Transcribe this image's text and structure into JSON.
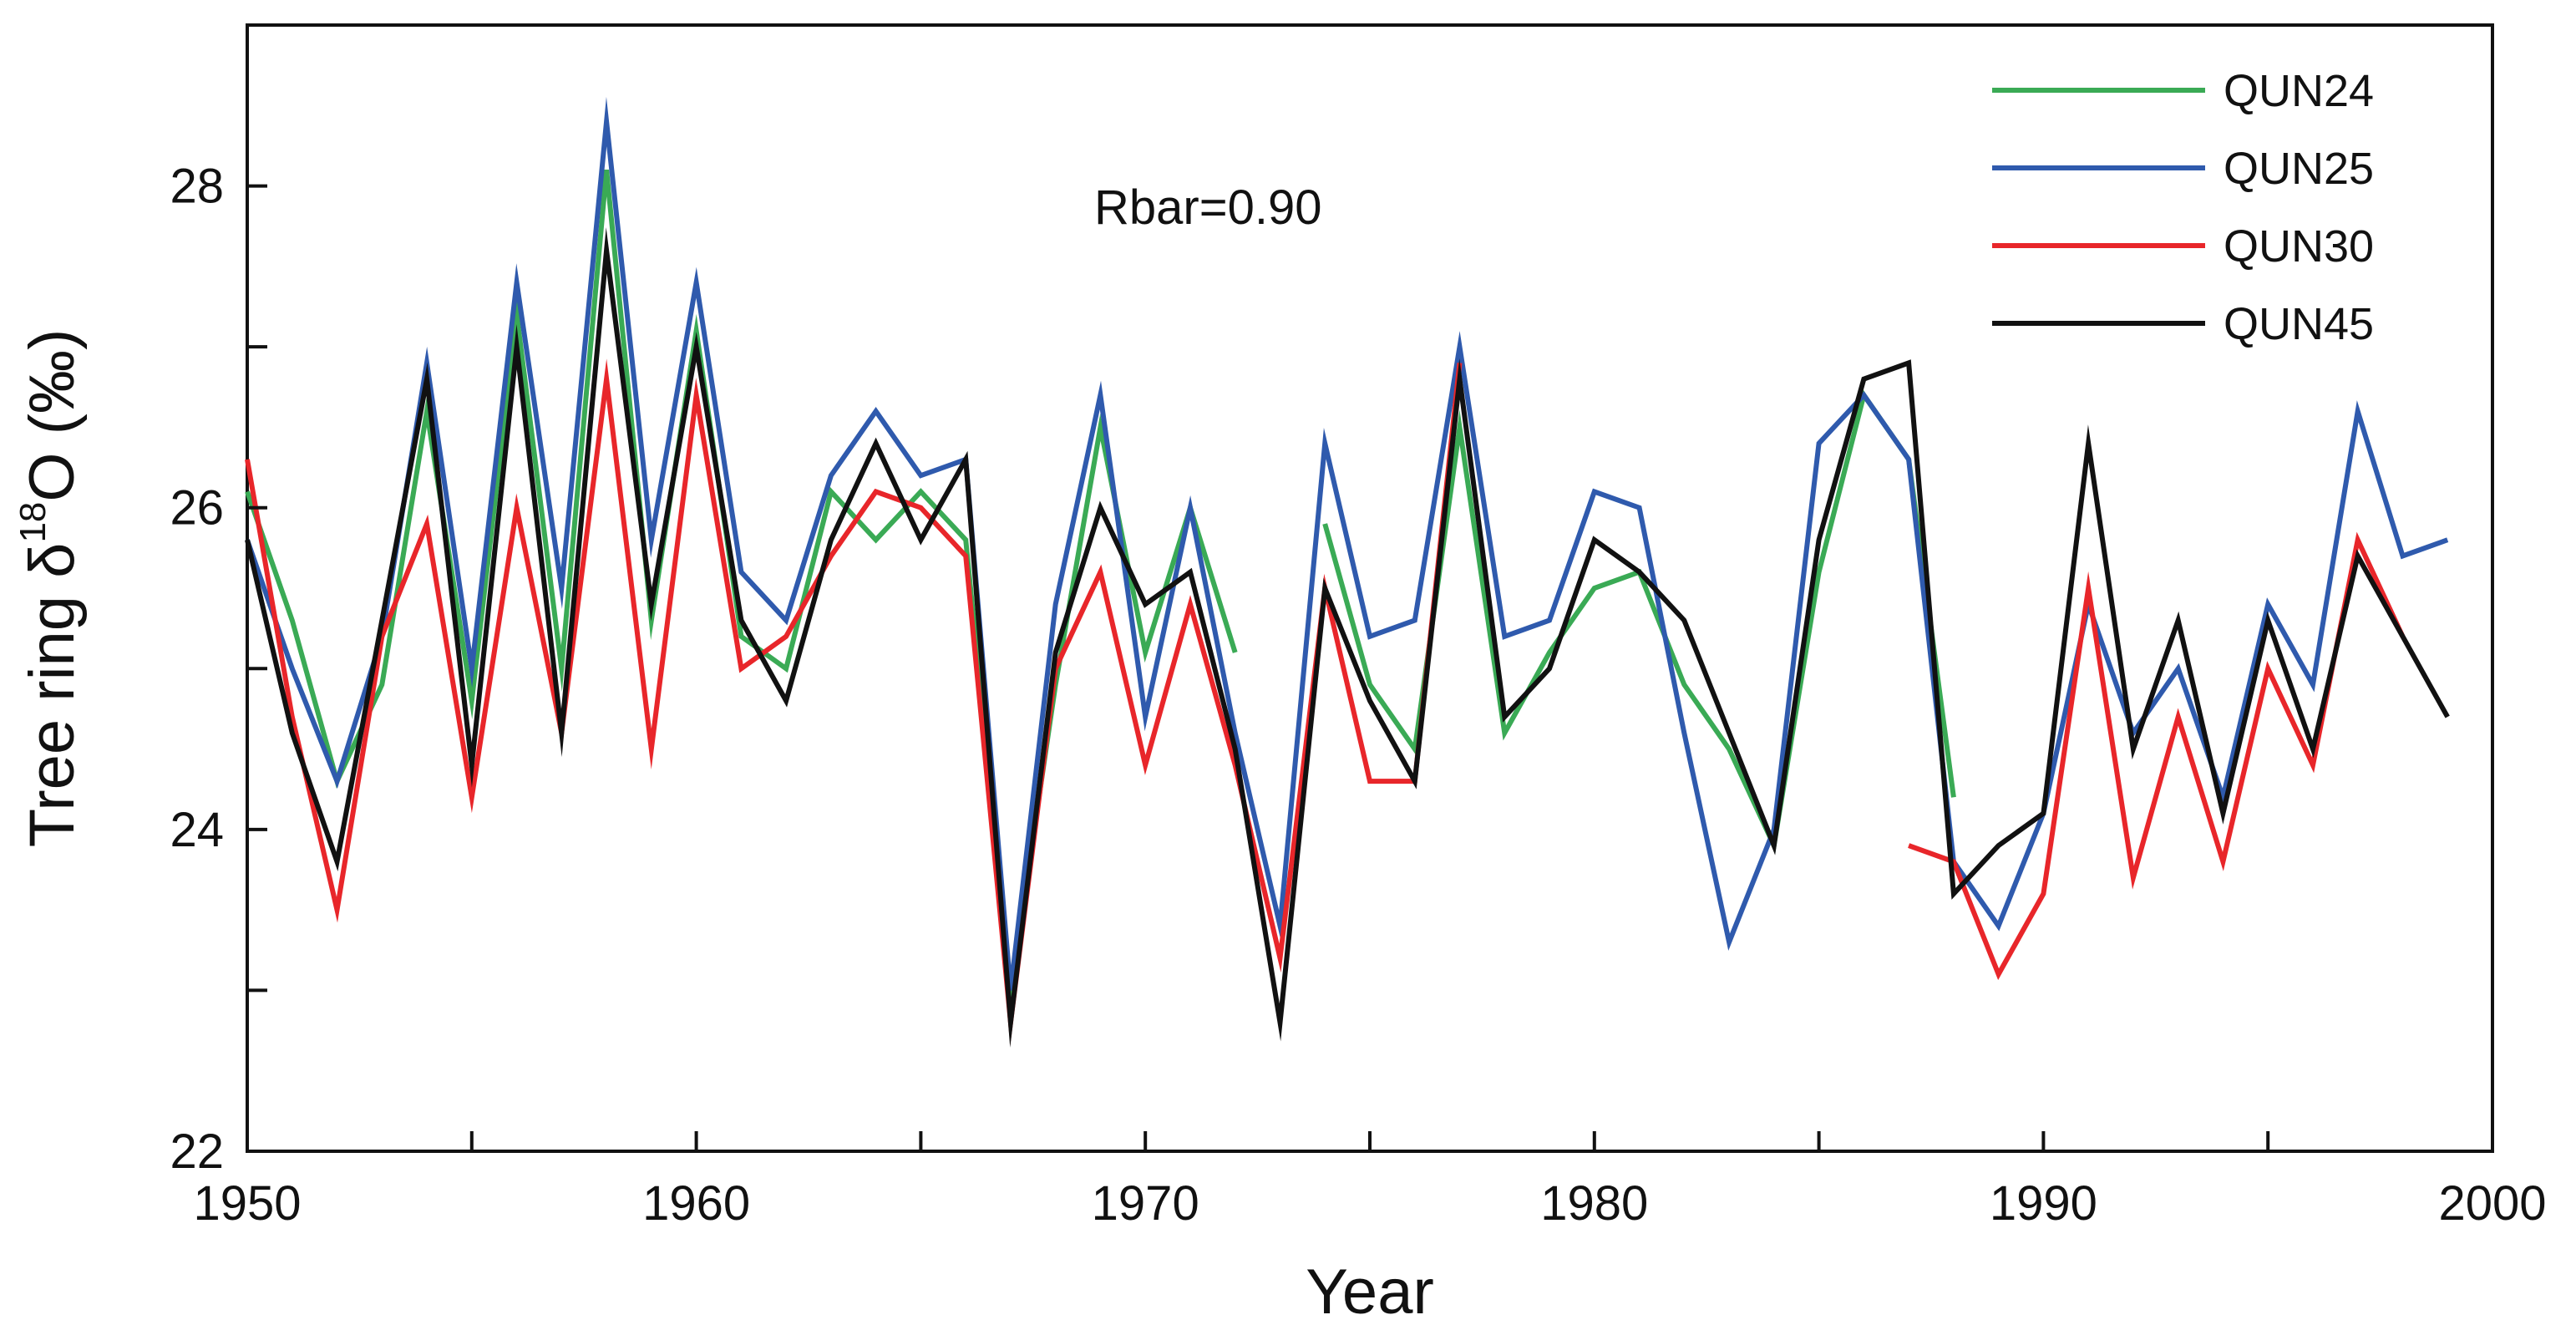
{
  "chart_data": {
    "type": "line",
    "title": "",
    "xlabel": "Year",
    "ylabel": "Tree ring δ¹⁸O (‰)",
    "ylabel_parts": {
      "main": "Tree ring δ",
      "sup": "18",
      "tail": "O (‰)"
    },
    "xlim": [
      1950,
      2000
    ],
    "ylim": [
      22,
      29
    ],
    "xticks": [
      1950,
      1960,
      1970,
      1980,
      1990,
      2000
    ],
    "yticks": [
      22,
      24,
      26,
      28
    ],
    "grid": false,
    "legend_position": "top-right",
    "annotation": "Rbar=0.90",
    "series": [
      {
        "name": "QUN24",
        "color": "#3aaa55",
        "x": [
          1950,
          1951,
          1952,
          1953,
          1954,
          1955,
          1956,
          1957,
          1958,
          1959,
          1960,
          1961,
          1962,
          1963,
          1964,
          1965,
          1966,
          1967,
          1968,
          1969,
          1970,
          1971,
          1972,
          null,
          1974,
          1975,
          1976,
          1977,
          1978,
          1979,
          1980,
          1981,
          1982,
          1983,
          1984,
          1985,
          1986,
          1987,
          1988
        ],
        "y": [
          26.1,
          25.3,
          24.3,
          24.9,
          26.6,
          24.8,
          27.2,
          25.0,
          28.1,
          25.3,
          27.1,
          25.2,
          25.0,
          26.1,
          25.8,
          26.1,
          25.8,
          23.0,
          24.9,
          26.5,
          25.1,
          26.0,
          25.1,
          null,
          25.9,
          24.9,
          24.5,
          26.5,
          24.6,
          25.1,
          25.5,
          25.6,
          24.9,
          24.5,
          23.9,
          25.6,
          26.7,
          26.3,
          24.2
        ]
      },
      {
        "name": "QUN25",
        "color": "#2f5aad",
        "x": [
          1950,
          1951,
          1952,
          1953,
          1954,
          1955,
          1956,
          1957,
          1958,
          1959,
          1960,
          1961,
          1962,
          1963,
          1964,
          1965,
          1966,
          1967,
          1968,
          1969,
          1970,
          1971,
          1972,
          1973,
          1974,
          1975,
          1976,
          1977,
          1978,
          1979,
          1980,
          1981,
          1982,
          1983,
          1984,
          1985,
          1986,
          1987,
          1988,
          1989,
          1990,
          1991,
          1992,
          1993,
          1994,
          1995,
          1996,
          1997,
          1998,
          1999
        ],
        "y": [
          25.8,
          25.0,
          24.3,
          25.2,
          26.9,
          25.0,
          27.4,
          25.5,
          28.4,
          25.8,
          27.4,
          25.6,
          25.3,
          26.2,
          26.6,
          26.2,
          26.3,
          23.0,
          25.4,
          26.7,
          24.7,
          26.0,
          24.6,
          23.4,
          26.4,
          25.2,
          25.3,
          27.0,
          25.2,
          25.3,
          26.1,
          26.0,
          24.6,
          23.3,
          24.0,
          26.4,
          26.7,
          26.3,
          23.8,
          23.4,
          24.1,
          25.4,
          24.6,
          25.0,
          24.2,
          25.4,
          24.9,
          26.6,
          25.7,
          25.8
        ]
      },
      {
        "name": "QUN30",
        "color": "#e8262a",
        "x": [
          1950,
          1951,
          1952,
          1953,
          1954,
          1955,
          1956,
          1957,
          1958,
          1959,
          1960,
          1961,
          1962,
          1963,
          1964,
          1965,
          1966,
          1967,
          1968,
          1969,
          1970,
          1971,
          1972,
          1973,
          1974,
          1975,
          1976,
          1977,
          null,
          1987,
          1988,
          1989,
          1990,
          1991,
          1992,
          1993,
          1994,
          1995,
          1996,
          1997,
          1998
        ],
        "y": [
          26.3,
          24.7,
          23.5,
          25.2,
          25.9,
          24.2,
          26.0,
          24.6,
          26.8,
          24.5,
          26.7,
          25.0,
          25.2,
          25.7,
          26.1,
          26.0,
          25.7,
          22.8,
          25.0,
          25.6,
          24.4,
          25.4,
          24.4,
          23.2,
          25.5,
          24.3,
          24.3,
          26.9,
          null,
          23.9,
          23.8,
          23.1,
          23.6,
          25.5,
          23.7,
          24.7,
          23.8,
          25.0,
          24.4,
          25.8,
          25.2
        ]
      },
      {
        "name": "QUN45",
        "color": "#111111",
        "x": [
          1950,
          1951,
          1952,
          1953,
          1954,
          1955,
          1956,
          1957,
          1958,
          1959,
          1960,
          1961,
          1962,
          1963,
          1964,
          1965,
          1966,
          1967,
          1968,
          1969,
          1970,
          1971,
          1972,
          1973,
          1974,
          1975,
          1976,
          1977,
          1978,
          1979,
          1980,
          1981,
          1982,
          1983,
          1984,
          1985,
          1986,
          1987,
          1988,
          1989,
          1990,
          1991,
          1992,
          1993,
          1994,
          1995,
          1996,
          1997,
          1998,
          1999
        ],
        "y": [
          25.8,
          24.6,
          23.8,
          25.3,
          26.8,
          24.4,
          27.0,
          24.6,
          27.6,
          25.4,
          27.0,
          25.3,
          24.8,
          25.8,
          26.4,
          25.8,
          26.3,
          22.8,
          25.1,
          26.0,
          25.4,
          25.6,
          24.5,
          22.8,
          25.5,
          24.8,
          24.3,
          26.8,
          24.7,
          25.0,
          25.8,
          25.6,
          25.3,
          24.6,
          23.9,
          25.8,
          26.8,
          26.9,
          23.6,
          23.9,
          24.1,
          26.4,
          24.5,
          25.3,
          24.1,
          25.3,
          24.5,
          25.7,
          25.2,
          24.7
        ]
      }
    ]
  }
}
